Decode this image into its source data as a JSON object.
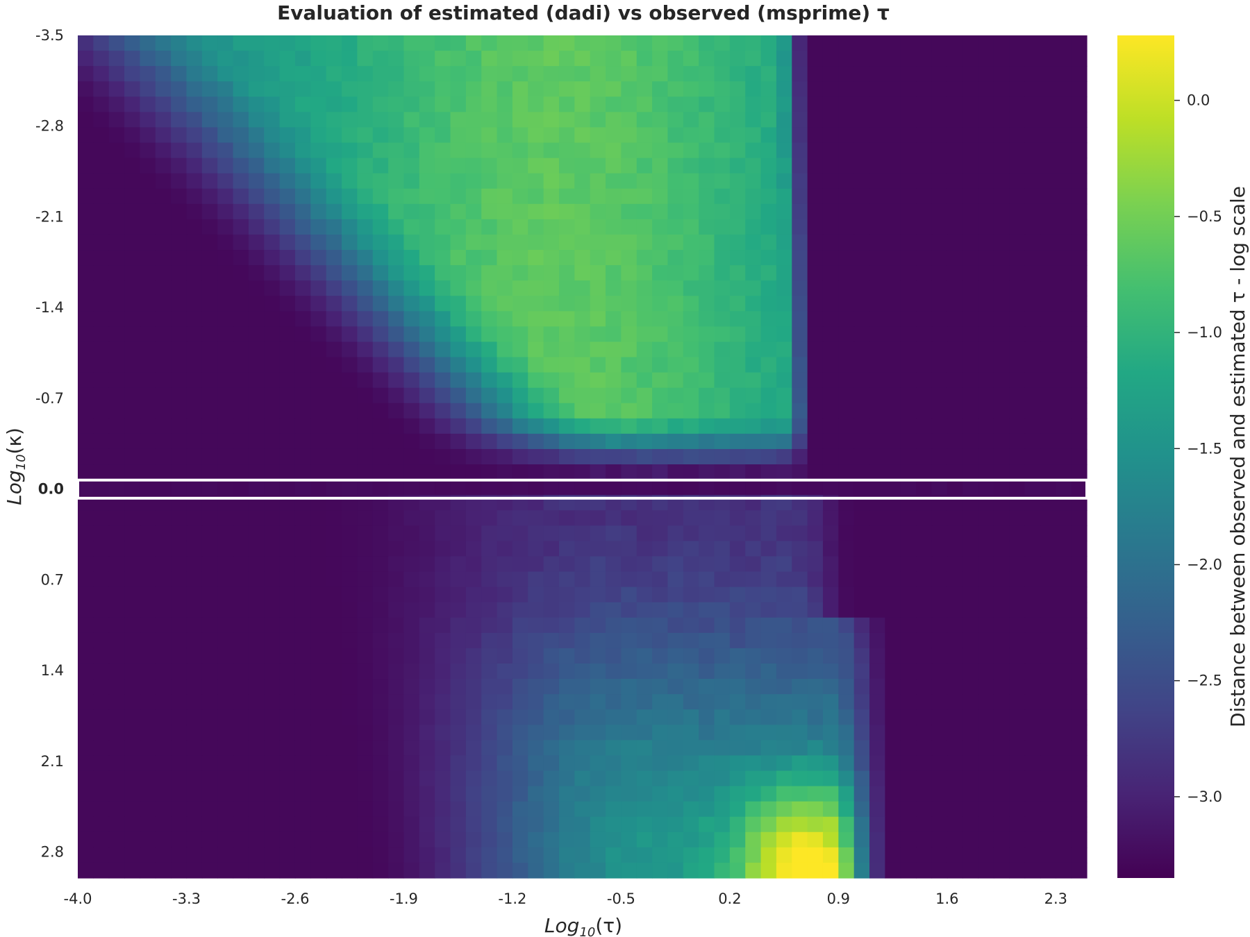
{
  "chart_data": {
    "type": "heatmap",
    "title": "Evaluation of estimated (dadi) vs observed (msprime) τ",
    "xlabel": {
      "base": "Log",
      "sub": "10",
      "var": "(τ)"
    },
    "ylabel": {
      "base": "Log",
      "sub": "10",
      "var": "(κ)"
    },
    "colorbar_label": "Distance between observed and estimated τ - log scale",
    "colormap": "viridis",
    "x_range": [
      -4.0,
      2.5
    ],
    "y_range": [
      -3.5,
      3.0
    ],
    "x_ticks": [
      "-4.0",
      "-3.3",
      "-2.6",
      "-1.9",
      "-1.2",
      "-0.5",
      "0.2",
      "0.9",
      "1.6",
      "2.3"
    ],
    "y_ticks": [
      "-3.5",
      "-2.8",
      "-2.1",
      "-1.4",
      "-0.7",
      "0.0",
      "0.7",
      "1.4",
      "2.1",
      "2.8"
    ],
    "y_highlight_tick": "0.0",
    "y_highlight_color": "#7b0a3a",
    "cbar_ticks": [
      "0.0",
      "−0.5",
      "−1.0",
      "−1.5",
      "−2.0",
      "−2.5",
      "−3.0"
    ],
    "cbar_range": [
      -3.35,
      0.28
    ],
    "grid": false,
    "highlight_row": "κ = 0 (separated by white lines)",
    "value_model": {
      "upper": {
        "floor": -3.28,
        "ridge_center_x": -0.9,
        "ridge_left_edge_x": -3.6,
        "ridge_right_edge_x": 0.55,
        "ridge_y_top": -3.5,
        "ridge_y_bottom": -0.25,
        "peak": -0.55
      },
      "lower": {
        "floor": -3.28,
        "ridge_center_x": 0.7,
        "ridge_right_edge_x": 1.2,
        "peak": 0.28
      }
    }
  }
}
